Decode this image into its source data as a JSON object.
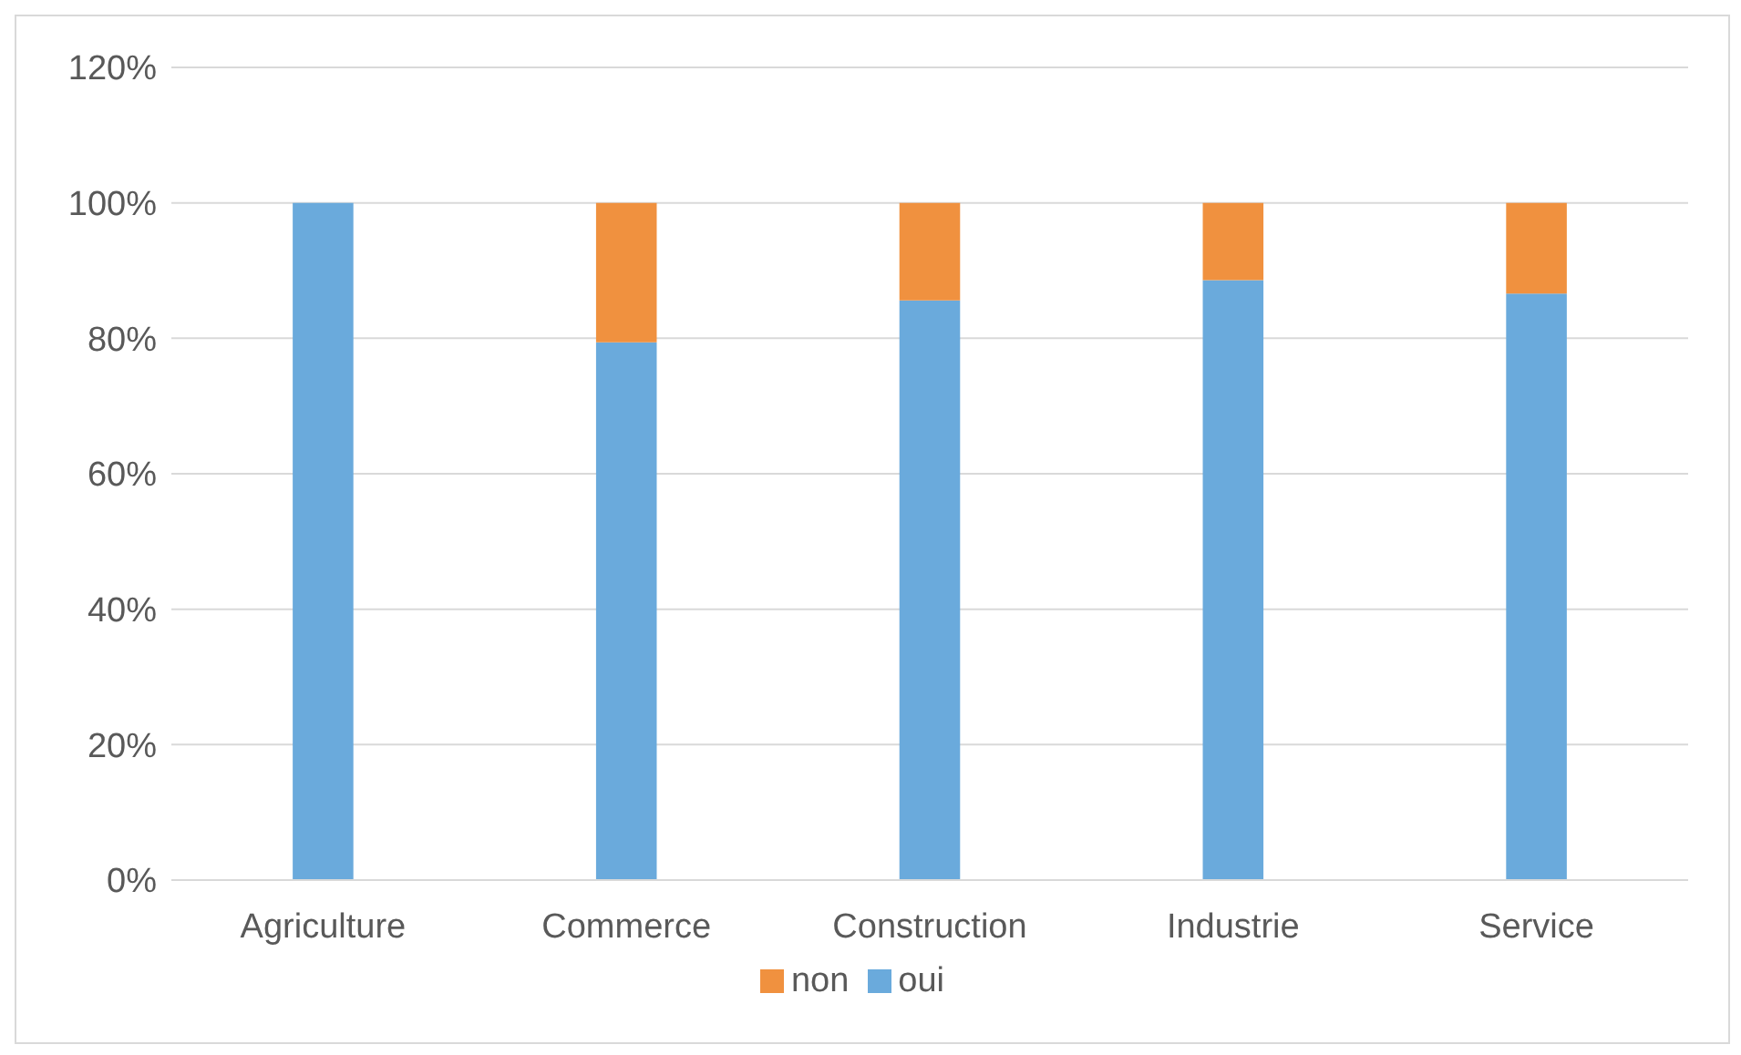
{
  "chart_data": {
    "type": "bar",
    "stacked": true,
    "categories": [
      "Agriculture",
      "Commerce",
      "Construction",
      "Industrie",
      "Service"
    ],
    "series": [
      {
        "name": "oui",
        "color": "#6aaadc",
        "values": [
          100,
          79.4,
          85.6,
          88.6,
          86.6
        ]
      },
      {
        "name": "non",
        "color": "#f0913f",
        "values": [
          0,
          20.6,
          14.4,
          11.4,
          13.4
        ]
      }
    ],
    "ylim": [
      0,
      120
    ],
    "yticks": [
      {
        "value": 0,
        "label": "0%"
      },
      {
        "value": 20,
        "label": "20%"
      },
      {
        "value": 40,
        "label": "40%"
      },
      {
        "value": 60,
        "label": "60%"
      },
      {
        "value": 80,
        "label": "80%"
      },
      {
        "value": 100,
        "label": "100%"
      },
      {
        "value": 120,
        "label": "120%"
      }
    ],
    "grid": "y",
    "legend": "bottom"
  }
}
